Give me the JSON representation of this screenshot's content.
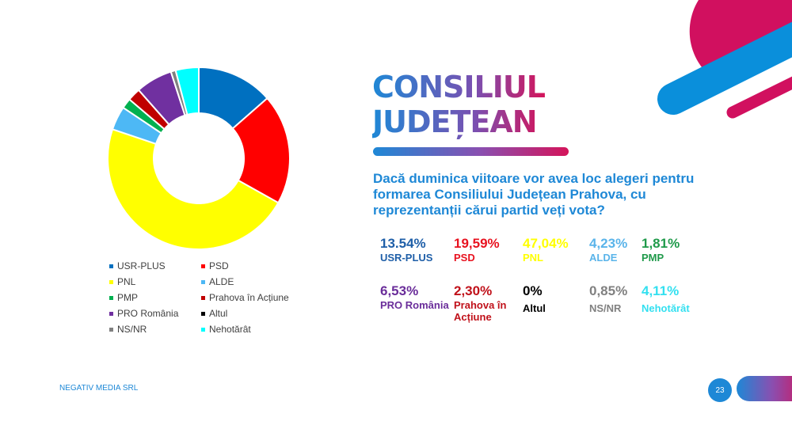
{
  "title_line1": "CONSILIUL",
  "title_line2": "JUDEȚEAN",
  "question": "Dacă duminica viitoare vor avea loc alegeri pentru formarea Consiliului Județean Prahova, cu reprezentanții cărui partid veți vota?",
  "footer": "NEGATIV MEDIA SRL",
  "page_number": "23",
  "results": [
    {
      "pct": "13.54%",
      "label": "USR-PLUS",
      "color": "#1f5fa8"
    },
    {
      "pct": "19,59%",
      "label": "PSD",
      "color": "#e8121f"
    },
    {
      "pct": "47,04%",
      "label": "PNL",
      "color": "#ffff00"
    },
    {
      "pct": "4,23%",
      "label": "ALDE",
      "color": "#5ab4ea"
    },
    {
      "pct": "1,81%",
      "label": "PMP",
      "color": "#1f9a4a"
    },
    {
      "pct": "6,53%",
      "label": "PRO România",
      "color": "#6a2d9a"
    },
    {
      "pct": "2,30%",
      "label": "Prahova în Acțiune",
      "color": "#c0111a"
    },
    {
      "pct": "0%",
      "label": "Altul",
      "color": "#000000"
    },
    {
      "pct": "0,85%",
      "label": "NS/NR",
      "color": "#808080"
    },
    {
      "pct": "4,11%",
      "label": "Nehotărât",
      "color": "#33e0f0"
    }
  ],
  "chart_data": {
    "type": "pie",
    "subtype": "donut",
    "categories": [
      "USR-PLUS",
      "PSD",
      "PNL",
      "ALDE",
      "PMP",
      "Prahova în Acțiune",
      "PRO România",
      "Altul",
      "NS/NR",
      "Nehotărât"
    ],
    "values": [
      13.54,
      19.59,
      47.04,
      4.23,
      1.81,
      2.3,
      6.53,
      0,
      0.85,
      4.11
    ],
    "colors": [
      "#0070c0",
      "#ff0000",
      "#ffff00",
      "#4db8f5",
      "#00b050",
      "#c00000",
      "#7030a0",
      "#000000",
      "#808080",
      "#00ffff"
    ],
    "legend_placement": "bottom",
    "legend": [
      "USR-PLUS",
      "PSD",
      "PNL",
      "ALDE",
      "PMP",
      "Prahova în Acțiune",
      "PRO România",
      "Altul",
      "NS/NR",
      "Nehotărât"
    ]
  }
}
